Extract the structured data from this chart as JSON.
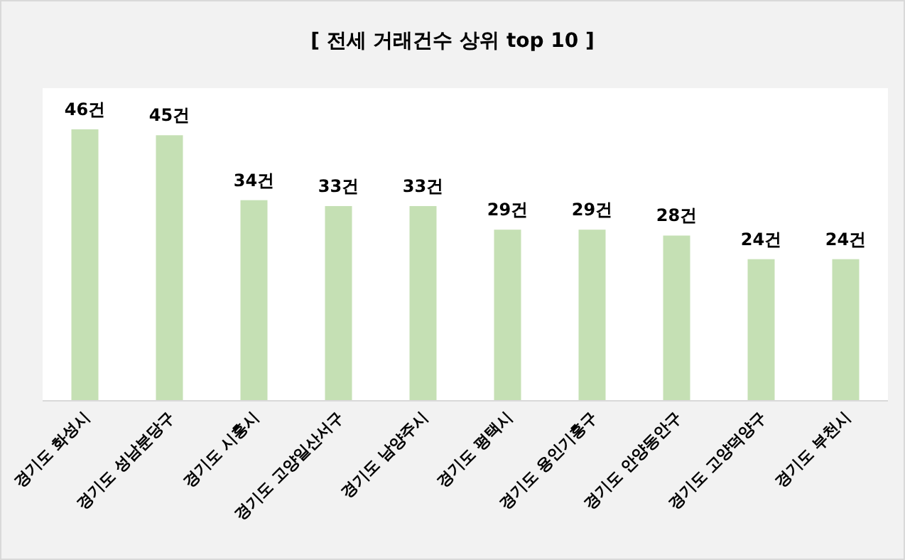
{
  "chart_data": {
    "type": "bar",
    "title": "[ 전세 거래건수 상위 top 10 ]",
    "categories": [
      "경기도 화성시",
      "경기도 성남분당구",
      "경기도 시흥시",
      "경기도 고양일산서구",
      "경기도 남양주시",
      "경기도 평택시",
      "경기도 용인기흥구",
      "경기도 안양동안구",
      "경기도 고양덕양구",
      "경기도 부천시"
    ],
    "series": [
      {
        "color": "#c5e0b4",
        "values": [
          46,
          45,
          34,
          33,
          33,
          29,
          29,
          28,
          24,
          24
        ],
        "value_labels": [
          "46건",
          "45건",
          "34건",
          "33건",
          "33건",
          "29건",
          "29건",
          "28건",
          "24건",
          "24건"
        ]
      }
    ]
  }
}
